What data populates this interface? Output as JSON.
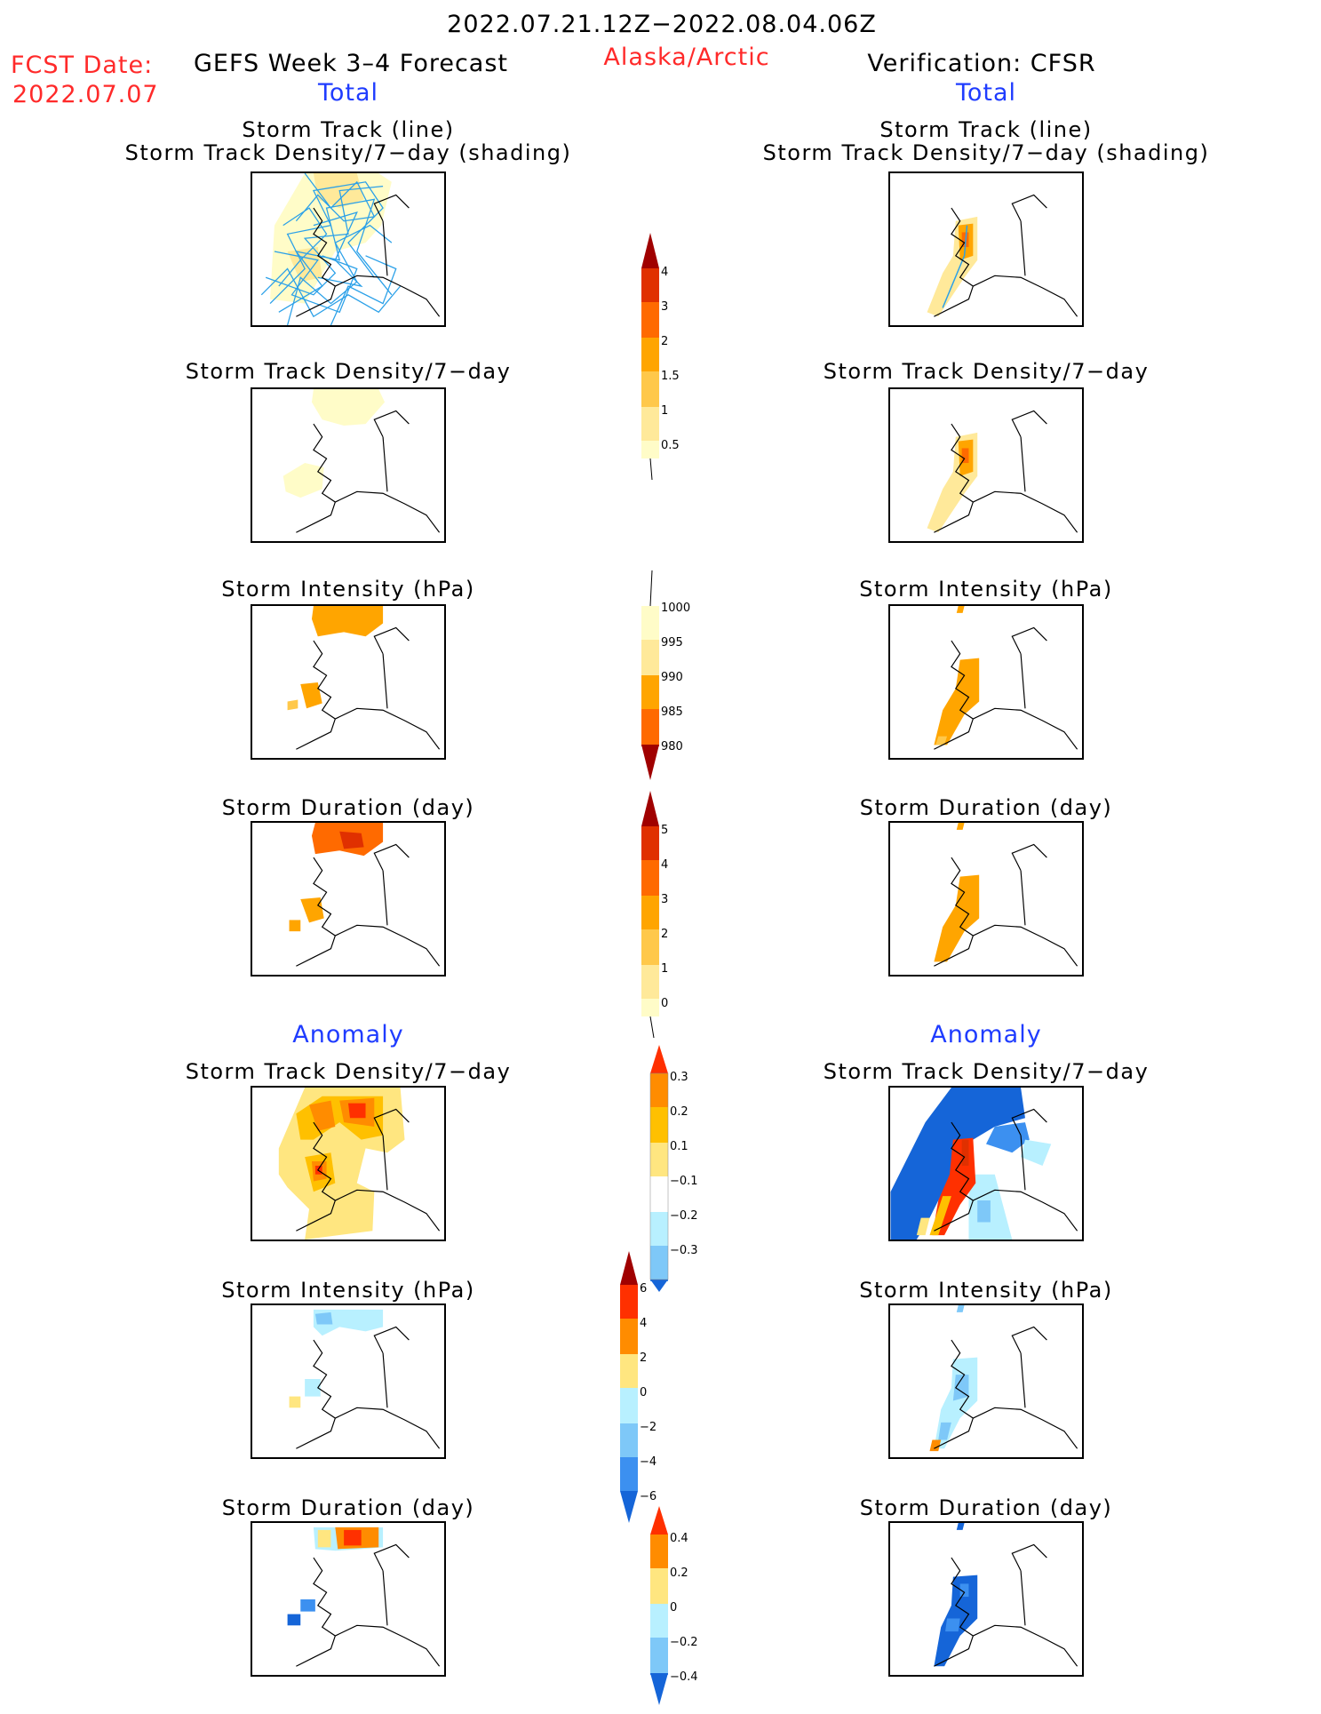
{
  "header": {
    "period": "2022.07.21.12Z−2022.08.04.06Z",
    "fcst_label": "FCST Date:",
    "fcst_date": "2022.07.07",
    "left_title": "GEFS Week 3–4 Forecast",
    "region": "Alaska/Arctic",
    "right_title": "Verification: CFSR",
    "left_total": "Total",
    "right_total": "Total",
    "left_anomaly": "Anomaly",
    "right_anomaly": "Anomaly"
  },
  "panels": {
    "track_line": "Storm Track (line)",
    "track_shading": "Storm Track Density/7−day (shading)",
    "density": "Storm Track Density/7−day",
    "intensity": "Storm Intensity (hPa)",
    "duration": "Storm Duration (day)"
  },
  "colorbars": [
    {
      "id": "density",
      "labels": [
        "4",
        "3",
        "2",
        "1.5",
        "1",
        "0.5"
      ],
      "colors": [
        "#a00000",
        "#e03000",
        "#ff6a00",
        "#ffa500",
        "#ffc84a",
        "#ffe99a",
        "#fffcc8"
      ]
    },
    {
      "id": "intensity",
      "labels": [
        "1000",
        "995",
        "990",
        "985",
        "980"
      ],
      "colors": [
        "#fffcc8",
        "#ffe99a",
        "#ffa500",
        "#ff6a00",
        "#e03000",
        "#a00000"
      ]
    },
    {
      "id": "duration",
      "labels": [
        "5",
        "4",
        "3",
        "2",
        "1",
        "0"
      ],
      "colors": [
        "#a00000",
        "#e03000",
        "#ff6a00",
        "#ffa500",
        "#ffc84a",
        "#ffe99a",
        "#fffcc8"
      ]
    },
    {
      "id": "anom_density",
      "labels": [
        "0.3",
        "0.2",
        "0.1",
        "−0.1",
        "−0.2",
        "−0.3"
      ],
      "colors": [
        "#ff3000",
        "#ff8c00",
        "#ffc000",
        "#ffe680",
        "#ffffff",
        "#b8f0ff",
        "#7ec8f8",
        "#3c90f0",
        "#1565d8"
      ]
    },
    {
      "id": "anom_intensity",
      "labels": [
        "6",
        "4",
        "2",
        "0",
        "−2",
        "−4",
        "−6"
      ],
      "colors": [
        "#a00000",
        "#ff3000",
        "#ff8c00",
        "#ffe680",
        "#b8f0ff",
        "#7ec8f8",
        "#3c90f0",
        "#1565d8"
      ]
    },
    {
      "id": "anom_duration",
      "labels": [
        "0.4",
        "0.2",
        "0",
        "−0.2",
        "−0.4"
      ],
      "colors": [
        "#ff3000",
        "#ff8c00",
        "#ffe680",
        "#b8f0ff",
        "#7ec8f8",
        "#3c90f0",
        "#1565d8"
      ]
    }
  ]
}
